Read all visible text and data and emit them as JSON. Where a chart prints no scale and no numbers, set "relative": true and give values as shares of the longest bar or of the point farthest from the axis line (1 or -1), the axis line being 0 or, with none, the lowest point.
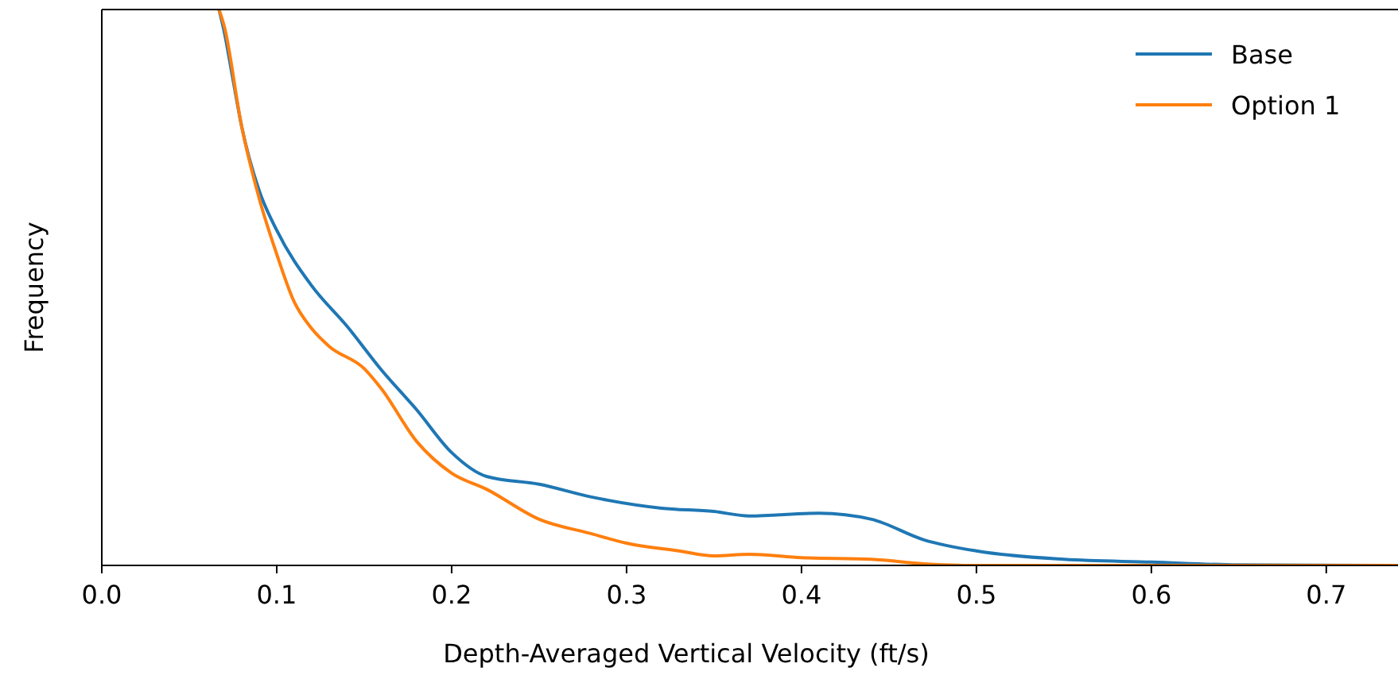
{
  "chart_data": {
    "type": "line",
    "xlabel": "Depth-Averaged Vertical Velocity (ft/s)",
    "ylabel": "Frequency",
    "relative": true,
    "xlim": [
      0,
      0.741
    ],
    "xticks": [
      {
        "value": 0,
        "label": "0.0"
      },
      0.1,
      0.2,
      0.3,
      0.4,
      0.5,
      0.6,
      0.7
    ],
    "legend": "top right",
    "grid": false,
    "series": [
      {
        "name": "Base",
        "color": "#1f77b4",
        "x": [
          0.067,
          0.07,
          0.075,
          0.08,
          0.09,
          0.1,
          0.12,
          0.14,
          0.16,
          0.18,
          0.2,
          0.22,
          0.25,
          0.28,
          0.32,
          0.35,
          0.37,
          0.41,
          0.44,
          0.47,
          0.5,
          0.55,
          0.6,
          0.65,
          0.741
        ],
        "values": [
          1.0,
          0.96,
          0.874,
          0.789,
          0.674,
          0.603,
          0.503,
          0.431,
          0.351,
          0.28,
          0.203,
          0.16,
          0.146,
          0.123,
          0.103,
          0.097,
          0.089,
          0.094,
          0.083,
          0.046,
          0.026,
          0.011,
          0.006,
          0.001,
          0
        ]
      },
      {
        "name": "Option 1",
        "color": "#ff7f0e",
        "x": [
          0.067,
          0.07,
          0.08,
          0.09,
          0.1,
          0.11,
          0.12,
          0.13,
          0.15,
          0.16,
          0.18,
          0.2,
          0.22,
          0.25,
          0.28,
          0.3,
          0.33,
          0.35,
          0.37,
          0.4,
          0.44,
          0.47,
          0.5,
          0.741
        ],
        "values": [
          1.0,
          0.97,
          0.789,
          0.66,
          0.56,
          0.474,
          0.426,
          0.394,
          0.354,
          0.317,
          0.223,
          0.166,
          0.137,
          0.083,
          0.057,
          0.04,
          0.026,
          0.017,
          0.02,
          0.014,
          0.011,
          0.003,
          0,
          0
        ]
      }
    ]
  }
}
